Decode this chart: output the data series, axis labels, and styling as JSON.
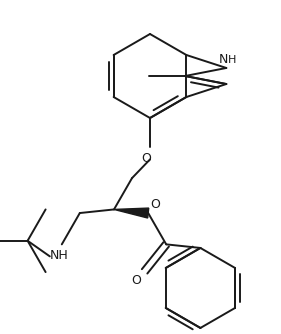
{
  "bg_color": "#ffffff",
  "line_color": "#1a1a1a",
  "lw": 1.4,
  "figsize": [
    2.81,
    3.34
  ],
  "dpi": 100,
  "xlim": [
    0,
    281
  ],
  "ylim": [
    0,
    334
  ],
  "font_size": 9
}
